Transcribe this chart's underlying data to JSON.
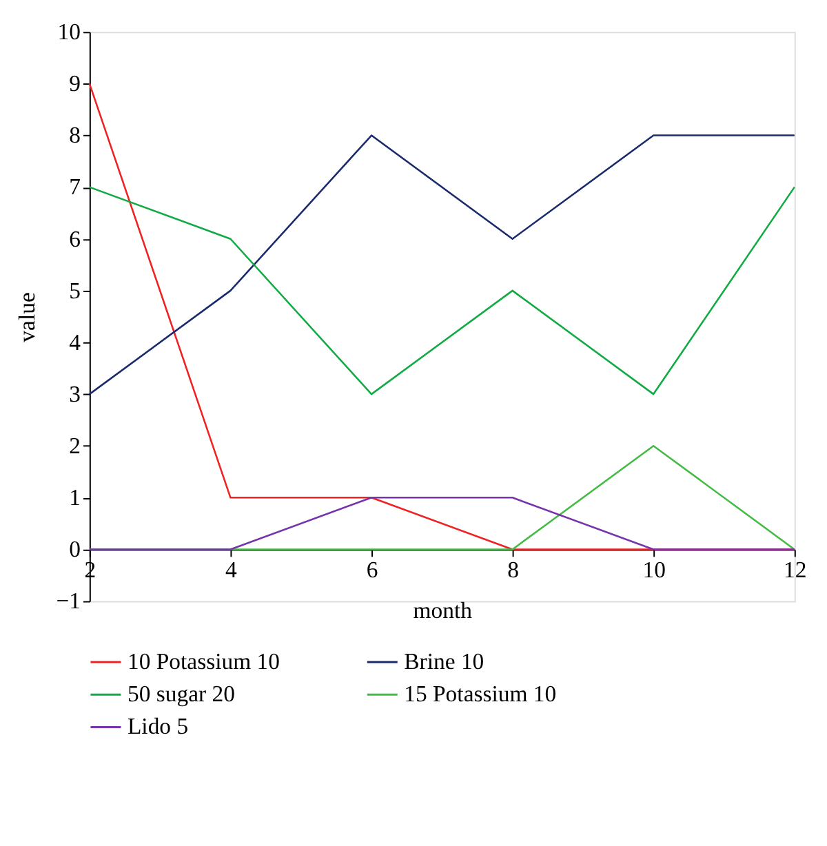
{
  "chart_data": {
    "type": "line",
    "xlabel": "month",
    "ylabel": "value",
    "x": [
      2,
      4,
      6,
      8,
      10,
      12
    ],
    "series": [
      {
        "name": "10 Potassium 10",
        "color": "#ee2222",
        "values": [
          9,
          1,
          1,
          0,
          0,
          0
        ]
      },
      {
        "name": "Brine 10",
        "color": "#1a2a6c",
        "values": [
          3,
          5,
          8,
          6,
          8,
          8
        ]
      },
      {
        "name": "50 sugar 20",
        "color": "#11aa44",
        "values": [
          7,
          6,
          3,
          5,
          3,
          7
        ]
      },
      {
        "name": "15 Potassium 10",
        "color": "#44bb44",
        "values": [
          0,
          0,
          0,
          0,
          2,
          0
        ]
      },
      {
        "name": "Lido 5",
        "color": "#7733aa",
        "values": [
          0,
          0,
          1,
          1,
          0,
          0
        ]
      }
    ],
    "xlim": [
      2,
      12
    ],
    "xticks": [
      2,
      4,
      6,
      8,
      10,
      12
    ],
    "ylim": [
      -1,
      10
    ],
    "yticks": [
      -1,
      0,
      1,
      2,
      3,
      4,
      5,
      6,
      7,
      8,
      9,
      10
    ],
    "grid": false,
    "legend": "bottom",
    "marker": "none",
    "line_style": "solid"
  }
}
